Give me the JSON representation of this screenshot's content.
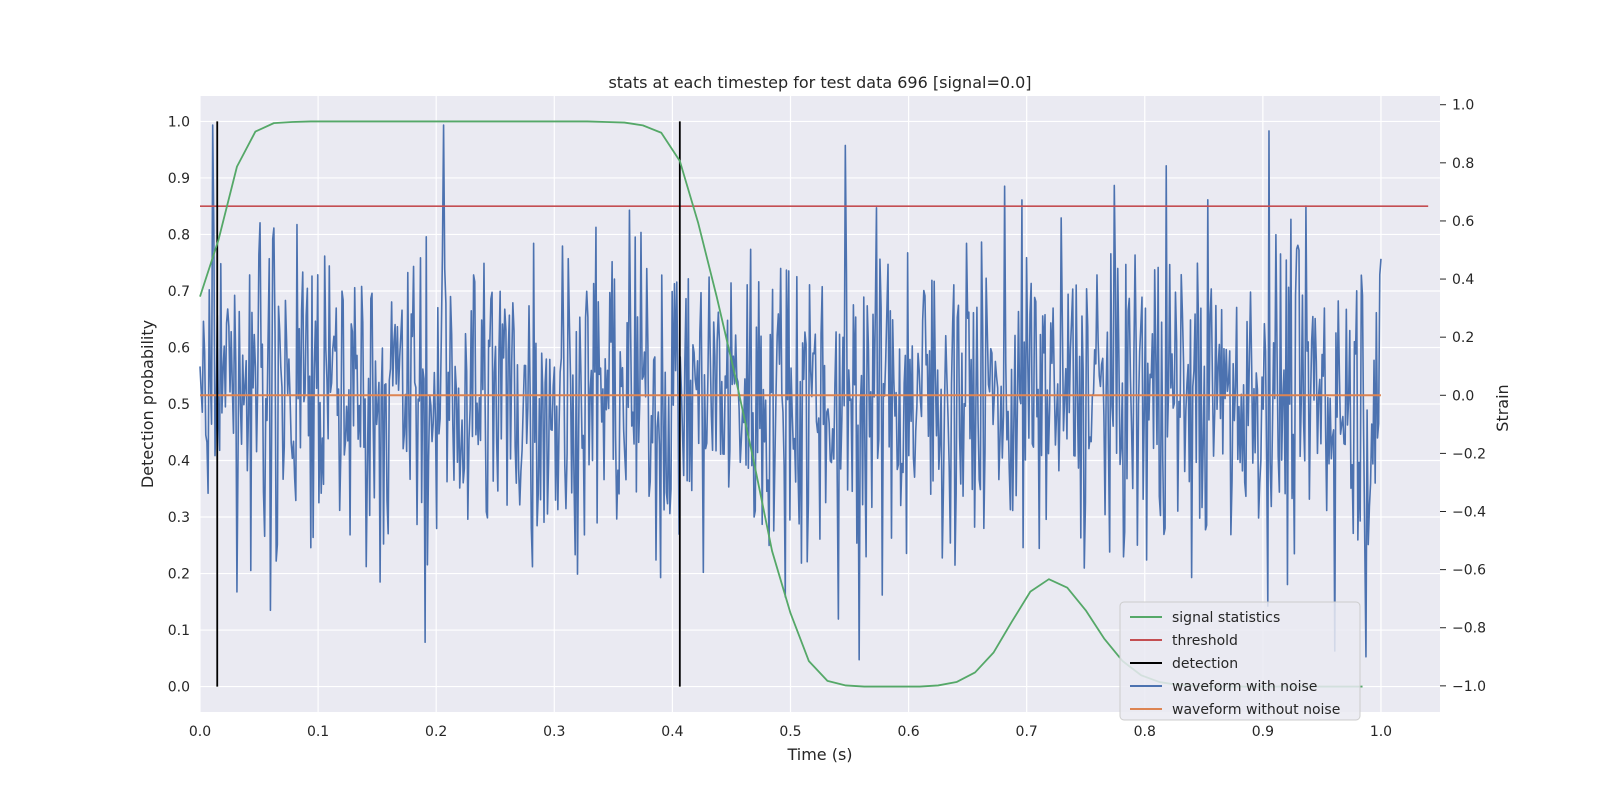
{
  "chart_data": {
    "type": "line",
    "title": "stats at each timestep for test data 696 [signal=0.0]",
    "xlabel": "Time (s)",
    "ylabel": "Detection probability",
    "y2label": "Strain",
    "xlim": [
      0.0,
      1.05
    ],
    "ylim": [
      -0.045,
      1.045
    ],
    "y2lim": [
      -1.09,
      1.03
    ],
    "xticks": [
      "0.0",
      "0.1",
      "0.2",
      "0.3",
      "0.4",
      "0.5",
      "0.6",
      "0.7",
      "0.8",
      "0.9",
      "1.0"
    ],
    "yticks": [
      "0.0",
      "0.1",
      "0.2",
      "0.3",
      "0.4",
      "0.5",
      "0.6",
      "0.7",
      "0.8",
      "0.9",
      "1.0"
    ],
    "y2ticks": [
      "−1.0",
      "−0.8",
      "−0.6",
      "−0.4",
      "−0.2",
      "0.0",
      "0.2",
      "0.4",
      "0.6",
      "0.8",
      "1.0"
    ],
    "grid": true,
    "legend_position": "lower-right",
    "colors": {
      "signal_statistics": "#55a868",
      "threshold": "#c44e52",
      "detection": "#000000",
      "waveform_with_noise": "#4c72b0",
      "waveform_without_noise": "#dd8452",
      "plot_background": "#eaeaf2",
      "grid": "#ffffff"
    },
    "signal_statistics": {
      "name": "signal statistics",
      "x": [
        0.0,
        0.0156,
        0.0313,
        0.0469,
        0.0625,
        0.0781,
        0.0938,
        0.1094,
        0.125,
        0.1406,
        0.1563,
        0.1719,
        0.1875,
        0.2031,
        0.2188,
        0.2344,
        0.25,
        0.2656,
        0.2813,
        0.2969,
        0.3125,
        0.3281,
        0.3438,
        0.3594,
        0.375,
        0.3906,
        0.4063,
        0.4219,
        0.4375,
        0.4531,
        0.4688,
        0.4844,
        0.5,
        0.5156,
        0.5313,
        0.5469,
        0.5625,
        0.5781,
        0.5938,
        0.6094,
        0.625,
        0.6406,
        0.6563,
        0.6719,
        0.6875,
        0.7031,
        0.7188,
        0.7344,
        0.75,
        0.7656,
        0.7813,
        0.7969,
        0.8125,
        0.8281,
        0.8438,
        0.8594,
        0.875,
        0.8906,
        0.9063,
        0.9219,
        0.9375,
        0.9531,
        0.9688,
        0.9844
      ],
      "y": [
        0.69,
        0.79,
        0.92,
        0.982,
        0.997,
        0.999,
        1.0,
        1.0,
        1.0,
        1.0,
        1.0,
        1.0,
        1.0,
        1.0,
        1.0,
        1.0,
        1.0,
        1.0,
        1.0,
        1.0,
        1.0,
        1.0,
        0.999,
        0.998,
        0.993,
        0.98,
        0.93,
        0.82,
        0.69,
        0.55,
        0.4,
        0.24,
        0.13,
        0.045,
        0.01,
        0.002,
        0.0,
        0.0,
        0.0,
        0.0,
        0.002,
        0.008,
        0.025,
        0.06,
        0.115,
        0.168,
        0.19,
        0.175,
        0.135,
        0.085,
        0.045,
        0.02,
        0.008,
        0.003,
        0.001,
        0.0,
        0.0,
        0.0,
        0.0,
        0.0,
        0.0,
        0.0,
        0.0,
        0.0
      ]
    },
    "threshold": {
      "name": "threshold",
      "value": 0.85,
      "x_range": [
        0.0,
        1.04
      ]
    },
    "detection": {
      "name": "detection",
      "x": [
        0.0146,
        0.4063
      ],
      "y_range": [
        0.0,
        1.0
      ]
    },
    "waveform_with_noise": {
      "name": "waveform with noise",
      "axis": "right",
      "x_range": [
        0.0,
        1.0
      ],
      "n_points": 1024,
      "approx_std": 0.27,
      "peaks": [
        [
          0.0107,
          0.93
        ],
        [
          0.2061,
          0.93
        ],
        [
          0.9048,
          0.91
        ],
        [
          0.5464,
          0.86
        ],
        [
          0.8184,
          0.79
        ]
      ],
      "troughs": [
        [
          0.5577,
          -0.91
        ],
        [
          0.1904,
          -0.85
        ],
        [
          0.9612,
          -0.88
        ],
        [
          0.9877,
          -0.9
        ],
        [
          0.5405,
          -0.77
        ]
      ]
    },
    "waveform_without_noise": {
      "name": "waveform without noise",
      "axis": "right",
      "value": 0.0,
      "x_range": [
        0.0,
        1.0
      ]
    }
  }
}
